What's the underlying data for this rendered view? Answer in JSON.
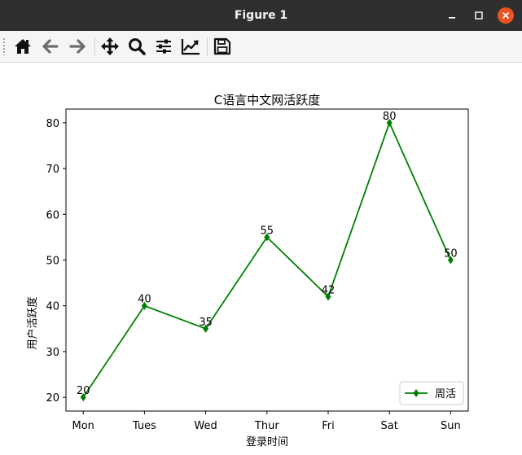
{
  "window": {
    "title": "Figure 1"
  },
  "toolbar": {
    "buttons": [
      {
        "name": "home",
        "icon": "home-icon"
      },
      {
        "name": "back",
        "icon": "arrow-left-icon"
      },
      {
        "name": "forward",
        "icon": "arrow-right-icon"
      },
      {
        "name": "pan",
        "icon": "move-arrows-icon"
      },
      {
        "name": "zoom",
        "icon": "magnifier-icon"
      },
      {
        "name": "configure-subplots",
        "icon": "sliders-icon"
      },
      {
        "name": "edit-axes",
        "icon": "line-chart-icon"
      },
      {
        "name": "save",
        "icon": "floppy-disk-icon"
      }
    ]
  },
  "colors": {
    "titlebar": "#2f2f2f",
    "toolbar": "#f6f5f4",
    "close_button": "#e95420",
    "series_line": "#008000"
  },
  "chart_data": {
    "type": "line",
    "title": "C语言中文网活跃度",
    "xlabel": "登录时间",
    "ylabel": "用户活跃度",
    "categories": [
      "Mon",
      "Tues",
      "Wed",
      "Thur",
      "Fri",
      "Sat",
      "Sun"
    ],
    "series": [
      {
        "name": "周活",
        "values": [
          20,
          40,
          35,
          55,
          42,
          80,
          50
        ],
        "color": "#008000",
        "marker": "diamond"
      }
    ],
    "data_labels": [
      "20",
      "40",
      "35",
      "55",
      "42",
      "80",
      "50"
    ],
    "yticks": [
      20,
      30,
      40,
      50,
      60,
      70,
      80
    ],
    "ylim": [
      17,
      83
    ],
    "grid": false,
    "legend": "lower right"
  }
}
